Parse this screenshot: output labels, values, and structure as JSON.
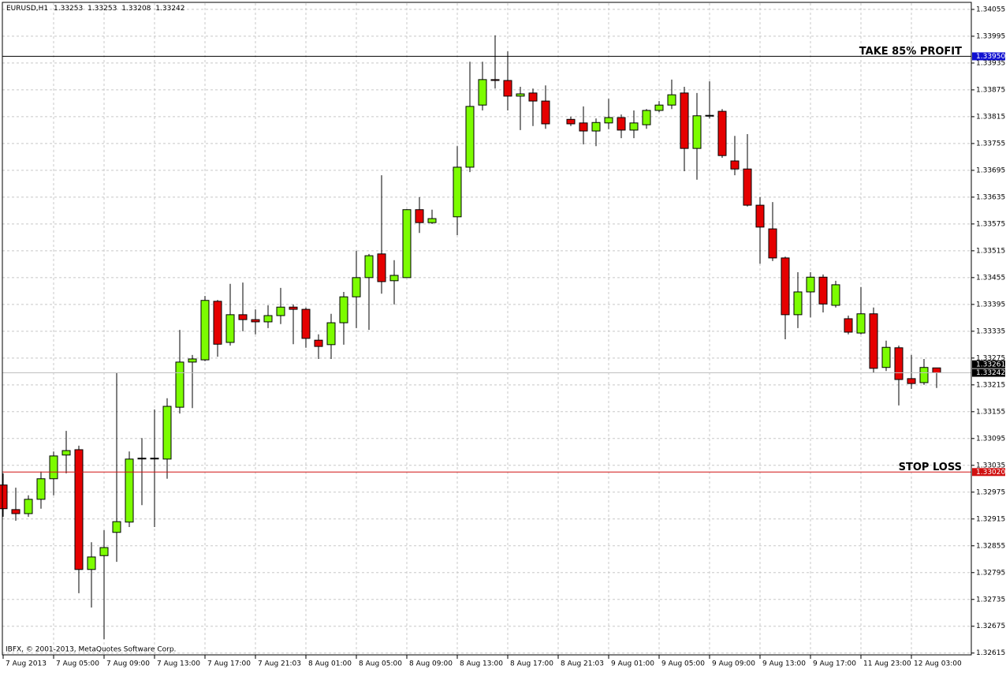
{
  "chart_data": {
    "type": "candlestick",
    "symbol": "EURUSD,H1",
    "copyright": "IBFX, © 2001-2013, MetaQuotes Software Corp.",
    "categories": [
      "7 Aug 2013",
      null,
      null,
      null,
      "7 Aug 05:00",
      null,
      null,
      null,
      "7 Aug 09:00",
      null,
      null,
      null,
      "7 Aug 13:00",
      null,
      null,
      null,
      "7 Aug 17:00",
      null,
      null,
      null,
      "7 Aug 21:03",
      null,
      null,
      null,
      "8 Aug 01:00",
      null,
      null,
      null,
      "8 Aug 05:00",
      null,
      null,
      null,
      "8 Aug 09:00",
      null,
      null,
      null,
      "8 Aug 13:00",
      null,
      null,
      null,
      "8 Aug 17:00",
      null,
      null,
      null,
      "8 Aug 21:03",
      null,
      null,
      null,
      "9 Aug 01:00",
      null,
      null,
      null,
      "9 Aug 05:00",
      null,
      null,
      null,
      "9 Aug 09:00",
      null,
      null,
      null,
      "9 Aug 13:00",
      null,
      null,
      null,
      "9 Aug 17:00",
      null,
      null,
      null,
      "11 Aug 23:00",
      null,
      null,
      null,
      "12 Aug 03:00",
      null,
      null
    ],
    "open": [
      1.32991,
      1.32936,
      1.32927,
      1.32959,
      1.33005,
      1.33058,
      1.3307,
      1.32802,
      1.32833,
      1.32885,
      1.32908,
      1.33051,
      1.33051,
      1.33049,
      1.33165,
      1.33266,
      1.33271,
      1.33402,
      1.3331,
      1.33372,
      1.33361,
      1.33356,
      1.3337,
      1.33389,
      1.33384,
      1.33315,
      1.33305,
      1.33354,
      1.33412,
      1.33455,
      1.33508,
      1.33448,
      1.33455,
      1.33607,
      1.33578,
      null,
      1.33591,
      1.33702,
      1.33841,
      1.33898,
      1.33896,
      1.33861,
      1.33868,
      1.3385,
      null,
      1.33809,
      1.33801,
      1.33783,
      1.33801,
      1.33813,
      1.33785,
      1.33797,
      1.33829,
      1.33841,
      1.33868,
      1.33744,
      1.33818,
      1.33827,
      1.33716,
      1.33698,
      1.33617,
      1.33564,
      1.33499,
      1.33372,
      1.33423,
      1.33456,
      1.33393,
      1.33363,
      1.33331,
      1.33374,
      1.33254,
      1.33298,
      1.33229,
      1.3322,
      1.33253
    ],
    "high": [
      1.33017,
      1.32985,
      1.32968,
      1.33021,
      1.33066,
      1.33112,
      1.33079,
      1.32863,
      1.3289,
      1.33243,
      1.33066,
      1.33096,
      1.3316,
      1.33185,
      1.33338,
      1.33282,
      1.33414,
      1.33405,
      1.33441,
      1.33444,
      1.33384,
      1.33393,
      1.33432,
      1.33395,
      1.33388,
      1.33328,
      1.33374,
      1.33423,
      1.33515,
      1.33508,
      1.33684,
      1.33494,
      1.33608,
      1.33635,
      1.33607,
      null,
      1.33749,
      1.33938,
      1.33938,
      1.33997,
      1.33961,
      1.33882,
      1.33878,
      1.33885,
      null,
      1.33815,
      1.33838,
      1.33811,
      1.33855,
      1.3382,
      1.33829,
      1.33832,
      1.3385,
      1.33898,
      1.33882,
      1.33868,
      1.33894,
      1.33832,
      1.33772,
      1.33776,
      1.33635,
      1.33624,
      1.33502,
      1.33467,
      1.33467,
      1.33462,
      1.33448,
      1.3337,
      1.33434,
      1.33388,
      1.33314,
      1.33303,
      1.33282,
      1.33273,
      1.33253
    ],
    "low": [
      1.3292,
      1.32911,
      1.3292,
      1.32938,
      1.32968,
      1.33017,
      1.32749,
      1.32717,
      1.32646,
      1.32819,
      1.32897,
      1.32946,
      1.32897,
      1.33005,
      1.33151,
      1.33163,
      1.33268,
      1.33278,
      1.33303,
      1.33335,
      1.33328,
      1.33342,
      1.33351,
      1.33306,
      1.33298,
      1.33273,
      1.33273,
      1.33305,
      1.33342,
      1.33338,
      1.33419,
      1.33395,
      1.33455,
      1.33555,
      1.33575,
      null,
      1.3355,
      1.33691,
      1.33829,
      1.33878,
      1.33829,
      1.33785,
      1.33794,
      1.33788,
      null,
      1.33794,
      1.33753,
      1.33749,
      1.33787,
      1.33767,
      1.33767,
      1.33788,
      1.33825,
      1.33832,
      1.33693,
      1.33674,
      1.33811,
      1.33723,
      1.33684,
      1.33614,
      1.33486,
      1.33492,
      1.33317,
      1.33342,
      1.33366,
      1.33377,
      1.33388,
      1.33328,
      1.33328,
      1.33243,
      1.33246,
      1.33169,
      1.33206,
      1.33215,
      1.33208
    ],
    "close": [
      1.32938,
      1.32927,
      1.32959,
      1.33005,
      1.33056,
      1.33068,
      1.32802,
      1.3283,
      1.32851,
      1.32909,
      1.33049,
      1.33051,
      1.33051,
      1.33167,
      1.33266,
      1.33273,
      1.33404,
      1.33306,
      1.33372,
      1.33361,
      1.33356,
      1.3337,
      1.33389,
      1.33384,
      1.33319,
      1.33301,
      1.33354,
      1.33412,
      1.33455,
      1.33504,
      1.33446,
      1.3346,
      1.33607,
      1.33578,
      1.33587,
      null,
      1.33702,
      1.33838,
      1.33898,
      1.33896,
      1.33861,
      1.33866,
      1.3385,
      1.33799,
      null,
      1.33799,
      1.33783,
      1.33802,
      1.33813,
      1.33785,
      1.33801,
      1.33829,
      1.33841,
      1.33864,
      1.33744,
      1.33817,
      1.33818,
      1.33728,
      1.33698,
      1.33617,
      1.33568,
      1.33499,
      1.33372,
      1.33423,
      1.33456,
      1.33396,
      1.33439,
      1.33333,
      1.33374,
      1.33252,
      1.33299,
      1.33227,
      1.33218,
      1.33254,
      1.33242
    ],
    "up_color": "#7cfc00",
    "down_color": "#e50000",
    "ylim": [
      1.32611,
      1.34069
    ],
    "yticks": [
      1.34055,
      1.33995,
      1.33935,
      1.33875,
      1.33815,
      1.33755,
      1.33695,
      1.33635,
      1.33575,
      1.33515,
      1.33455,
      1.33395,
      1.33335,
      1.33275,
      1.33215,
      1.33155,
      1.33095,
      1.33035,
      1.32975,
      1.32915,
      1.32855,
      1.32795,
      1.32735,
      1.32675,
      1.32615
    ],
    "grid": true,
    "levels": [
      {
        "label": "TAKE 85% PROFIT",
        "price": {
          "value": 1.3395,
          "label": "1.33950"
        },
        "color": "#000000",
        "tag_color": "#1010d0"
      },
      {
        "label": "STOP LOSS",
        "price": {
          "value": 1.3302,
          "label": "1.33020"
        },
        "color": "#d01010",
        "tag_color": "#d01010"
      }
    ],
    "ask": 1.33261,
    "bid": 1.33242,
    "bid_color": "#c0c0c0"
  }
}
